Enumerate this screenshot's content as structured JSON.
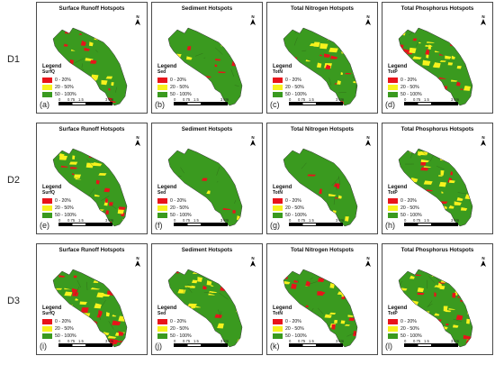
{
  "rows": [
    {
      "label": "D1",
      "panels": [
        {
          "letter": "(a)",
          "title": "Surface Runoff Hotspots",
          "variable": "SurfQ",
          "seed": 11,
          "mix": [
            0.12,
            0.12,
            0.76
          ]
        },
        {
          "letter": "(b)",
          "title": "Sediment Hotspots",
          "variable": "Sed",
          "seed": 23,
          "mix": [
            0.06,
            0.07,
            0.87
          ]
        },
        {
          "letter": "(c)",
          "title": "Total Nitrogen Hotspots",
          "variable": "TotN",
          "seed": 37,
          "mix": [
            0.1,
            0.18,
            0.72
          ]
        },
        {
          "letter": "(d)",
          "title": "Total Phosphorus Hotspots",
          "variable": "TotP",
          "seed": 41,
          "mix": [
            0.16,
            0.26,
            0.58
          ]
        }
      ]
    },
    {
      "label": "D2",
      "panels": [
        {
          "letter": "(e)",
          "title": "Surface Runoff Hotspots",
          "variable": "SurfQ",
          "seed": 53,
          "mix": [
            0.14,
            0.16,
            0.7
          ]
        },
        {
          "letter": "(f)",
          "title": "Sediment Hotspots",
          "variable": "Sed",
          "seed": 61,
          "mix": [
            0.05,
            0.05,
            0.9
          ]
        },
        {
          "letter": "(g)",
          "title": "Total Nitrogen Hotspots",
          "variable": "TotN",
          "seed": 71,
          "mix": [
            0.08,
            0.12,
            0.8
          ]
        },
        {
          "letter": "(h)",
          "title": "Total Phosphorus Hotspots",
          "variable": "TotP",
          "seed": 83,
          "mix": [
            0.12,
            0.18,
            0.7
          ]
        }
      ]
    },
    {
      "label": "D3",
      "panels": [
        {
          "letter": "(i)",
          "title": "Surface Runoff Hotspots",
          "variable": "SurfQ",
          "seed": 97,
          "mix": [
            0.22,
            0.22,
            0.56
          ]
        },
        {
          "letter": "(j)",
          "title": "Sediment Hotspots",
          "variable": "Sed",
          "seed": 101,
          "mix": [
            0.05,
            0.2,
            0.75
          ]
        },
        {
          "letter": "(k)",
          "title": "Total Nitrogen Hotspots",
          "variable": "TotN",
          "seed": 113,
          "mix": [
            0.2,
            0.25,
            0.55
          ]
        },
        {
          "letter": "(l)",
          "title": "Total Phosphorus Hotspots",
          "variable": "TotP",
          "seed": 127,
          "mix": [
            0.2,
            0.3,
            0.5
          ]
        }
      ]
    }
  ],
  "legend": {
    "title": "Legend",
    "classes": [
      {
        "label": "0 - 20%",
        "color": "#e8141a"
      },
      {
        "label": "20 - 50%",
        "color": "#f7f21d"
      },
      {
        "label": "50 - 100%",
        "color": "#3a9a1f"
      }
    ]
  },
  "scale_bar": {
    "ticks": [
      "0",
      "0.75",
      "1.5",
      "3 km"
    ]
  },
  "north_arrow": {
    "label": "N"
  }
}
